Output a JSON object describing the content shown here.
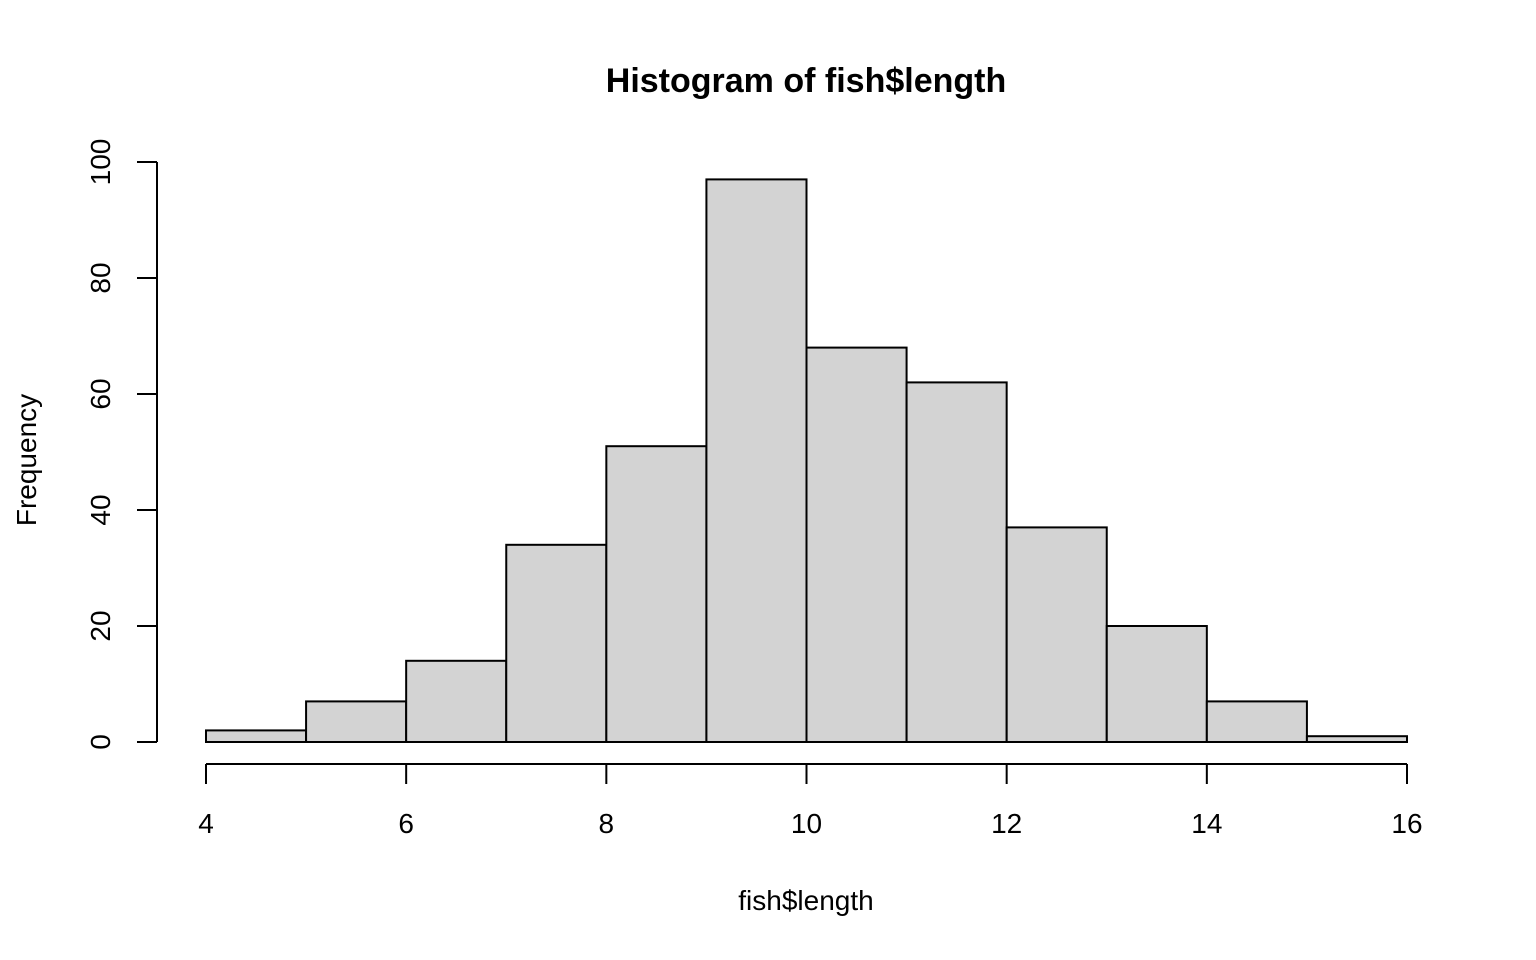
{
  "chart_data": {
    "type": "bar",
    "title": "Histogram of fish$length",
    "xlabel": "fish$length",
    "ylabel": "Frequency",
    "bins": [
      {
        "start": 4,
        "end": 5,
        "value": 2
      },
      {
        "start": 5,
        "end": 6,
        "value": 7
      },
      {
        "start": 6,
        "end": 7,
        "value": 14
      },
      {
        "start": 7,
        "end": 8,
        "value": 34
      },
      {
        "start": 8,
        "end": 9,
        "value": 51
      },
      {
        "start": 9,
        "end": 10,
        "value": 97
      },
      {
        "start": 10,
        "end": 11,
        "value": 68
      },
      {
        "start": 11,
        "end": 12,
        "value": 62
      },
      {
        "start": 12,
        "end": 13,
        "value": 37
      },
      {
        "start": 13,
        "end": 14,
        "value": 20
      },
      {
        "start": 14,
        "end": 15,
        "value": 7
      },
      {
        "start": 15,
        "end": 16,
        "value": 1
      }
    ],
    "xlim": [
      4,
      16
    ],
    "ylim": [
      0,
      100
    ],
    "x_ticks": [
      4,
      6,
      8,
      10,
      12,
      14,
      16
    ],
    "y_ticks": [
      0,
      20,
      40,
      60,
      80,
      100
    ],
    "bar_color": "#d3d3d3",
    "grid": false
  }
}
